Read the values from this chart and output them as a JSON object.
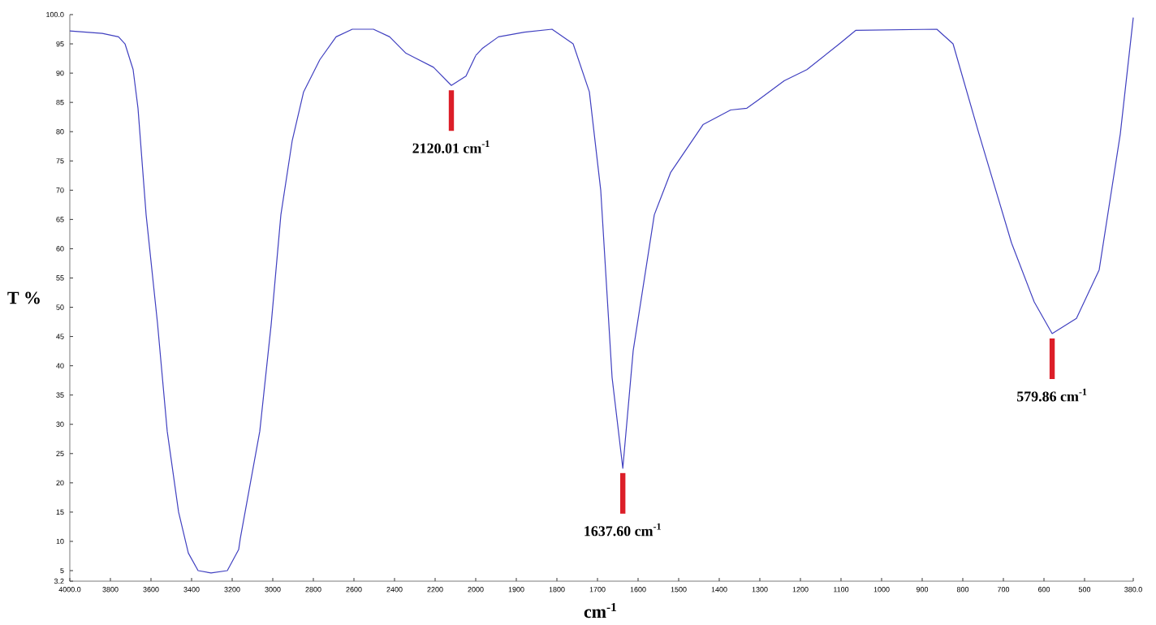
{
  "chart_data": [
    {
      "type": "line",
      "ylabel": "T %",
      "xlim": [
        4000,
        2000
      ],
      "ylim": [
        3.2,
        100
      ],
      "xticks": [
        {
          "value": 4000,
          "label": "4000.0"
        },
        3800,
        3600,
        3400,
        3200,
        3000,
        2800,
        2600,
        2400,
        2200,
        2000
      ],
      "yticks": [
        {
          "value": 3.2,
          "label": "3.2"
        },
        5,
        10,
        15,
        20,
        25,
        30,
        35,
        40,
        45,
        50,
        55,
        60,
        65,
        70,
        75,
        80,
        85,
        90,
        95,
        {
          "value": 100,
          "label": "100.0"
        }
      ],
      "grid": false,
      "marker": "none",
      "line_style": "solid",
      "series": [
        {
          "color": "#4040c0",
          "x": [
            4000,
            3840,
            3760,
            3728,
            3688,
            3664,
            3624,
            3568,
            3520,
            3464,
            3416,
            3368,
            3304,
            3224,
            3168,
            3160,
            3064,
            3008,
            2960,
            2904,
            2848,
            2768,
            2688,
            2608,
            2504,
            2424,
            2344,
            2208,
            2120.01,
            2048,
            2000
          ],
          "values": [
            97.2,
            96.8,
            96.2,
            95,
            90.6,
            84,
            65.8,
            47.3,
            28.8,
            15,
            8,
            5,
            4.6,
            5,
            8.6,
            10.5,
            28.8,
            47,
            65.8,
            78.5,
            86.8,
            92.3,
            96.2,
            97.5,
            97.5,
            96.2,
            93.4,
            91,
            87.9,
            89.5,
            93
          ]
        }
      ],
      "annotations": [
        {
          "text": "2120.01 cm$^{-1}$",
          "x": 2120.01,
          "y": 87.9
        }
      ]
    },
    {
      "type": "line",
      "xlabel": "cm$^{-1}$",
      "xlim": [
        2000,
        380
      ],
      "ylim": [
        3.2,
        100
      ],
      "xticks": [
        1900,
        1800,
        1700,
        1600,
        1500,
        1400,
        1300,
        1200,
        1100,
        1000,
        900,
        800,
        700,
        600,
        500,
        {
          "value": 380,
          "label": "380.0"
        }
      ],
      "tick_labels": "x",
      "grid": false,
      "marker": "none",
      "line_style": "solid",
      "series": [
        {
          "color": "#4040c0",
          "x": [
            2000,
            1984,
            1944,
            1880,
            1812,
            1760,
            1720,
            1692,
            1664,
            1637.6,
            1612,
            1560,
            1520,
            1440,
            1372,
            1332,
            1304,
            1240,
            1184,
            1104,
            1064,
            864,
            824,
            760,
            680,
            624,
            579.86,
            520,
            464,
            412,
            380
          ],
          "values": [
            93,
            94.2,
            96.2,
            97,
            97.5,
            95,
            86.8,
            70,
            38,
            22.5,
            42.6,
            65.8,
            73,
            81.2,
            83.7,
            84,
            85.4,
            88.7,
            90.6,
            95,
            97.3,
            97.5,
            95,
            79.6,
            61,
            50.9,
            45.5,
            48.1,
            56.4,
            79.6,
            99.5
          ]
        }
      ],
      "annotations": [
        {
          "text": "1637.60 cm$^{-1}$",
          "x": 1637.6,
          "y": 22.5
        },
        {
          "text": "579.86 cm$^{-1}$",
          "x": 579.86,
          "y": 45.5
        }
      ]
    }
  ]
}
